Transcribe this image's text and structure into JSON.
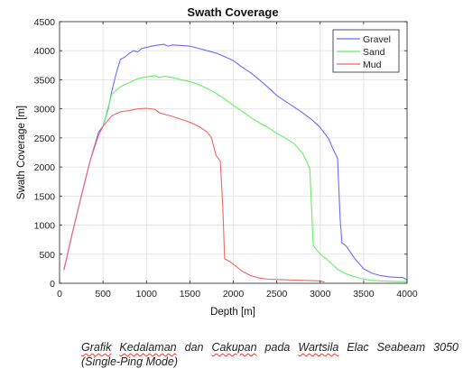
{
  "chart_data": {
    "type": "line",
    "title": "Swath Coverage",
    "xlabel": "Depth [m]",
    "ylabel": "Swath Coverage [m]",
    "xlim": [
      0,
      4000
    ],
    "ylim": [
      0,
      4500
    ],
    "xticks": [
      0,
      500,
      1000,
      1500,
      2000,
      2500,
      3000,
      3500,
      4000
    ],
    "yticks": [
      0,
      500,
      1000,
      1500,
      2000,
      2500,
      3000,
      3500,
      4000,
      4500
    ],
    "grid": true,
    "legend_position": "top-right",
    "series": [
      {
        "name": "Gravel",
        "color": "#6b6bff",
        "points": [
          [
            50,
            230
          ],
          [
            150,
            880
          ],
          [
            250,
            1500
          ],
          [
            350,
            2100
          ],
          [
            450,
            2600
          ],
          [
            500,
            2700
          ],
          [
            560,
            3000
          ],
          [
            600,
            3300
          ],
          [
            650,
            3600
          ],
          [
            700,
            3850
          ],
          [
            750,
            3890
          ],
          [
            800,
            3950
          ],
          [
            850,
            4000
          ],
          [
            900,
            3980
          ],
          [
            950,
            4040
          ],
          [
            1000,
            4060
          ],
          [
            1100,
            4090
          ],
          [
            1200,
            4110
          ],
          [
            1250,
            4080
          ],
          [
            1300,
            4100
          ],
          [
            1400,
            4090
          ],
          [
            1500,
            4080
          ],
          [
            1600,
            4040
          ],
          [
            1700,
            4000
          ],
          [
            1800,
            3960
          ],
          [
            1900,
            3900
          ],
          [
            2000,
            3830
          ],
          [
            2100,
            3720
          ],
          [
            2200,
            3620
          ],
          [
            2300,
            3500
          ],
          [
            2400,
            3370
          ],
          [
            2500,
            3230
          ],
          [
            2600,
            3130
          ],
          [
            2700,
            3030
          ],
          [
            2800,
            2930
          ],
          [
            2900,
            2820
          ],
          [
            3000,
            2680
          ],
          [
            3100,
            2480
          ],
          [
            3150,
            2300
          ],
          [
            3200,
            2150
          ],
          [
            3230,
            1100
          ],
          [
            3250,
            700
          ],
          [
            3300,
            640
          ],
          [
            3400,
            420
          ],
          [
            3500,
            250
          ],
          [
            3600,
            170
          ],
          [
            3700,
            130
          ],
          [
            3800,
            110
          ],
          [
            3900,
            100
          ],
          [
            3950,
            100
          ],
          [
            4000,
            60
          ]
        ]
      },
      {
        "name": "Sand",
        "color": "#66ee66",
        "points": [
          [
            500,
            2700
          ],
          [
            600,
            3250
          ],
          [
            700,
            3380
          ],
          [
            800,
            3450
          ],
          [
            900,
            3520
          ],
          [
            1000,
            3550
          ],
          [
            1100,
            3570
          ],
          [
            1150,
            3540
          ],
          [
            1200,
            3560
          ],
          [
            1300,
            3540
          ],
          [
            1400,
            3500
          ],
          [
            1500,
            3470
          ],
          [
            1600,
            3420
          ],
          [
            1700,
            3350
          ],
          [
            1800,
            3270
          ],
          [
            1900,
            3170
          ],
          [
            2000,
            3060
          ],
          [
            2100,
            2960
          ],
          [
            2200,
            2850
          ],
          [
            2300,
            2760
          ],
          [
            2400,
            2680
          ],
          [
            2500,
            2580
          ],
          [
            2600,
            2500
          ],
          [
            2700,
            2400
          ],
          [
            2800,
            2230
          ],
          [
            2880,
            1980
          ],
          [
            2920,
            650
          ],
          [
            3000,
            500
          ],
          [
            3100,
            380
          ],
          [
            3200,
            240
          ],
          [
            3300,
            160
          ],
          [
            3400,
            110
          ],
          [
            3500,
            70
          ],
          [
            3600,
            50
          ],
          [
            3700,
            40
          ],
          [
            3800,
            35
          ],
          [
            3900,
            30
          ],
          [
            4000,
            30
          ]
        ]
      },
      {
        "name": "Mud",
        "color": "#ee6666",
        "points": [
          [
            50,
            230
          ],
          [
            150,
            880
          ],
          [
            250,
            1500
          ],
          [
            350,
            2100
          ],
          [
            450,
            2550
          ],
          [
            500,
            2700
          ],
          [
            600,
            2880
          ],
          [
            700,
            2950
          ],
          [
            800,
            2970
          ],
          [
            900,
            3000
          ],
          [
            1000,
            3010
          ],
          [
            1100,
            2990
          ],
          [
            1150,
            2930
          ],
          [
            1200,
            2910
          ],
          [
            1300,
            2870
          ],
          [
            1400,
            2820
          ],
          [
            1500,
            2770
          ],
          [
            1600,
            2700
          ],
          [
            1700,
            2600
          ],
          [
            1750,
            2500
          ],
          [
            1800,
            2200
          ],
          [
            1850,
            2100
          ],
          [
            1880,
            1300
          ],
          [
            1900,
            420
          ],
          [
            1950,
            380
          ],
          [
            2000,
            330
          ],
          [
            2100,
            210
          ],
          [
            2200,
            130
          ],
          [
            2300,
            90
          ],
          [
            2400,
            70
          ],
          [
            2500,
            65
          ],
          [
            2600,
            60
          ],
          [
            2700,
            55
          ],
          [
            2800,
            50
          ],
          [
            2900,
            45
          ],
          [
            3000,
            40
          ],
          [
            3050,
            20
          ]
        ]
      }
    ]
  },
  "caption": {
    "w1": "Grafik",
    "t1": " ",
    "w2": "Kedalaman",
    "t2": " dan ",
    "w3": "Cakupan",
    "t3": " pada ",
    "w4": "Wartsila",
    "t4": " Elac Seabeam 3050 (Single-Ping Mode)"
  }
}
